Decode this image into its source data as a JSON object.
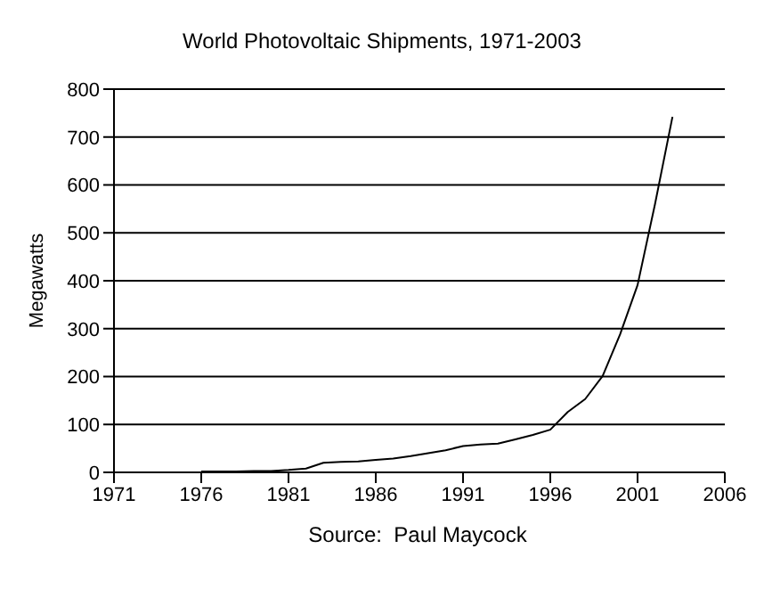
{
  "chart_data": {
    "type": "line",
    "title": "World Photovoltaic Shipments, 1971-2003",
    "ylabel": "Megawatts",
    "annotations": [
      "Source:  Paul Maycock"
    ],
    "x": [
      1976,
      1977,
      1978,
      1979,
      1980,
      1981,
      1982,
      1983,
      1984,
      1985,
      1986,
      1987,
      1988,
      1989,
      1990,
      1991,
      1992,
      1993,
      1994,
      1995,
      1996,
      1997,
      1998,
      1999,
      2000,
      2001,
      2002,
      2003
    ],
    "series": [
      {
        "color": "#000000",
        "values": [
          2,
          2,
          2,
          3,
          3,
          5,
          8,
          20,
          22,
          23,
          26,
          29,
          34,
          40,
          46,
          55,
          58,
          60,
          69,
          78,
          89,
          126,
          153,
          201,
          288,
          391,
          560,
          742
        ]
      }
    ],
    "xlim": [
      1971,
      2006
    ],
    "xticks": [
      1971,
      1976,
      1981,
      1986,
      1991,
      1996,
      2001,
      2006
    ],
    "ylim": [
      0,
      800
    ],
    "yticks": [
      0,
      100,
      200,
      300,
      400,
      500,
      600,
      700,
      800
    ],
    "grid": "y",
    "legend": false,
    "marker": "none",
    "line_style": "solid"
  }
}
